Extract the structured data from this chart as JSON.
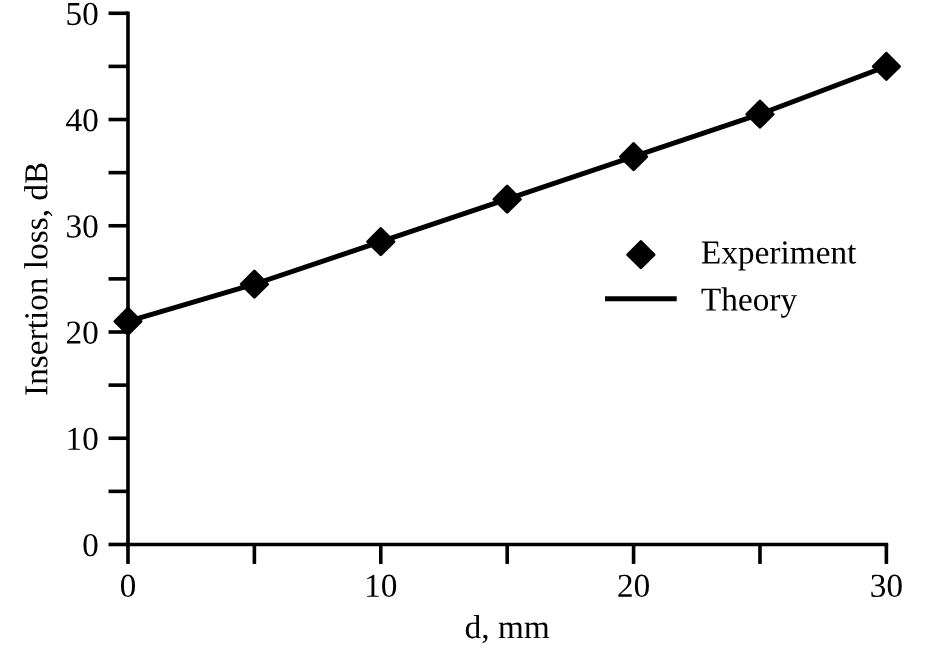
{
  "chart_data": {
    "type": "line",
    "xlabel": "d, mm",
    "ylabel": "Insertion loss, dB",
    "x": [
      0,
      5,
      10,
      15,
      20,
      25,
      30
    ],
    "series": [
      {
        "name": "Experiment",
        "type": "scatter",
        "marker": "diamond",
        "color": "#000000",
        "values": [
          21,
          24.5,
          28.5,
          32.5,
          36.5,
          40.5,
          45
        ]
      },
      {
        "name": "Theory",
        "marker": "none",
        "line_style": "solid",
        "color": "#000000",
        "values": [
          21,
          24.5,
          28.5,
          32.5,
          36.5,
          40.5,
          45
        ]
      }
    ],
    "xlim": [
      0,
      30
    ],
    "ylim": [
      0,
      50
    ],
    "xticks": [
      0,
      {
        "value": 5,
        "label": null
      },
      10,
      {
        "value": 15,
        "label": null
      },
      20,
      {
        "value": 25,
        "label": null
      },
      30
    ],
    "yticks": [
      0,
      {
        "value": 5,
        "label": null
      },
      10,
      {
        "value": 15,
        "label": null
      },
      20,
      {
        "value": 25,
        "label": null
      },
      30,
      {
        "value": 35,
        "label": null
      },
      40,
      {
        "value": 45,
        "label": null
      },
      50
    ],
    "grid": false,
    "legend": "center right"
  }
}
